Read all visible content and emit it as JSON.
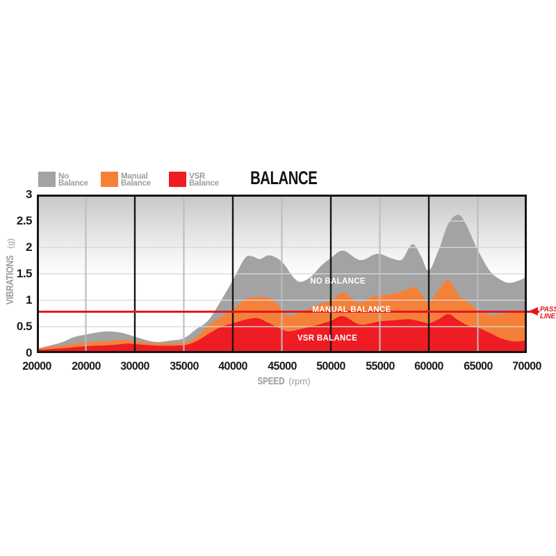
{
  "title": "BALANCE",
  "legend": {
    "items": [
      {
        "line1": "No",
        "line2": "Balance",
        "color": "#a3a3a3"
      },
      {
        "line1": "Manual",
        "line2": "Balance",
        "color": "#f58138"
      },
      {
        "line1": "VSR",
        "line2": "Balance",
        "color": "#ee1c23"
      }
    ]
  },
  "y_axis": {
    "title": "VIBRATIONS",
    "unit": "(g)",
    "tick_labels": [
      "3",
      "2.5",
      "2",
      "1.5",
      "1",
      "0.5",
      "0"
    ],
    "min": 0,
    "max": 3,
    "step": 0.5
  },
  "x_axis": {
    "title": "SPEED",
    "unit": "(rpm)",
    "tick_labels": [
      "20000",
      "20000",
      "30000",
      "35000",
      "40000",
      "45000",
      "50000",
      "55000",
      "60000",
      "65000",
      "70000"
    ]
  },
  "pass_line": {
    "value": 0.78,
    "label_line1": "PASS",
    "label_line2": "LINE",
    "color": "#e4171e"
  },
  "area_labels": {
    "no_balance": "NO BALANCE",
    "manual_balance": "MANUAL BALANCE",
    "vsr_balance": "VSR BALANCE"
  },
  "chart_data": {
    "type": "area",
    "title": "BALANCE",
    "xlabel": "SPEED (rpm)",
    "ylabel": "VIBRATIONS (g)",
    "ylim": [
      0,
      3
    ],
    "grid": true,
    "legend_position": "top-left",
    "x_index_range": [
      0,
      10
    ],
    "x_tick_labels": [
      "20000",
      "20000",
      "30000",
      "35000",
      "40000",
      "45000",
      "50000",
      "55000",
      "60000",
      "65000",
      "70000"
    ],
    "vgrid": {
      "major_ticks": [
        2,
        4,
        6,
        8
      ],
      "minor_ticks": [
        1,
        3,
        5,
        7,
        9
      ]
    },
    "pass_line_value": 0.78,
    "series": [
      {
        "name": "No Balance",
        "color": "#a3a3a3",
        "points": [
          [
            0,
            0.08
          ],
          [
            0.25,
            0.14
          ],
          [
            0.5,
            0.2
          ],
          [
            0.75,
            0.3
          ],
          [
            1,
            0.35
          ],
          [
            1.3,
            0.4
          ],
          [
            1.5,
            0.41
          ],
          [
            1.75,
            0.38
          ],
          [
            2,
            0.31
          ],
          [
            2.3,
            0.23
          ],
          [
            2.5,
            0.21
          ],
          [
            2.75,
            0.24
          ],
          [
            3,
            0.28
          ],
          [
            3.25,
            0.45
          ],
          [
            3.5,
            0.62
          ],
          [
            3.75,
            0.98
          ],
          [
            4,
            1.38
          ],
          [
            4.25,
            1.8
          ],
          [
            4.4,
            1.83
          ],
          [
            4.55,
            1.78
          ],
          [
            4.75,
            1.85
          ],
          [
            5,
            1.73
          ],
          [
            5.25,
            1.42
          ],
          [
            5.4,
            1.35
          ],
          [
            5.6,
            1.45
          ],
          [
            5.8,
            1.65
          ],
          [
            6,
            1.8
          ],
          [
            6.25,
            1.94
          ],
          [
            6.6,
            1.76
          ],
          [
            6.95,
            1.88
          ],
          [
            7.25,
            1.79
          ],
          [
            7.45,
            1.77
          ],
          [
            7.6,
            2.0
          ],
          [
            7.7,
            2.05
          ],
          [
            7.85,
            1.82
          ],
          [
            8,
            1.56
          ],
          [
            8.2,
            1.95
          ],
          [
            8.4,
            2.45
          ],
          [
            8.6,
            2.62
          ],
          [
            8.75,
            2.45
          ],
          [
            9,
            1.95
          ],
          [
            9.25,
            1.55
          ],
          [
            9.5,
            1.37
          ],
          [
            9.65,
            1.33
          ],
          [
            9.8,
            1.36
          ],
          [
            10,
            1.44
          ]
        ]
      },
      {
        "name": "Manual Balance",
        "color": "#f58138",
        "points": [
          [
            0,
            0.09
          ],
          [
            0.5,
            0.14
          ],
          [
            1,
            0.2
          ],
          [
            1.5,
            0.23
          ],
          [
            1.8,
            0.25
          ],
          [
            2,
            0.22
          ],
          [
            2.5,
            0.18
          ],
          [
            3,
            0.2
          ],
          [
            3.25,
            0.3
          ],
          [
            3.5,
            0.52
          ],
          [
            3.75,
            0.68
          ],
          [
            4,
            0.82
          ],
          [
            4.25,
            1.02
          ],
          [
            4.5,
            1.06
          ],
          [
            4.75,
            1.04
          ],
          [
            5,
            0.84
          ],
          [
            5.1,
            0.71
          ],
          [
            5.3,
            0.74
          ],
          [
            5.5,
            0.82
          ],
          [
            5.75,
            0.92
          ],
          [
            6,
            1.0
          ],
          [
            6.25,
            1.15
          ],
          [
            6.45,
            1.02
          ],
          [
            6.6,
            0.95
          ],
          [
            6.85,
            1.07
          ],
          [
            7,
            1.09
          ],
          [
            7.25,
            1.12
          ],
          [
            7.5,
            1.18
          ],
          [
            7.7,
            1.25
          ],
          [
            7.85,
            1.12
          ],
          [
            8,
            0.96
          ],
          [
            8.2,
            1.2
          ],
          [
            8.4,
            1.38
          ],
          [
            8.6,
            1.1
          ],
          [
            8.75,
            1.0
          ],
          [
            9,
            0.82
          ],
          [
            9.25,
            0.72
          ],
          [
            9.5,
            0.74
          ],
          [
            9.75,
            0.81
          ],
          [
            10,
            0.78
          ]
        ]
      },
      {
        "name": "VSR Balance",
        "color": "#ee1c23",
        "points": [
          [
            0,
            0.06
          ],
          [
            0.5,
            0.09
          ],
          [
            1,
            0.13
          ],
          [
            1.5,
            0.15
          ],
          [
            1.85,
            0.18
          ],
          [
            2,
            0.17
          ],
          [
            2.5,
            0.14
          ],
          [
            3,
            0.15
          ],
          [
            3.25,
            0.22
          ],
          [
            3.5,
            0.36
          ],
          [
            3.75,
            0.49
          ],
          [
            4,
            0.56
          ],
          [
            4.25,
            0.63
          ],
          [
            4.5,
            0.66
          ],
          [
            4.75,
            0.56
          ],
          [
            5,
            0.45
          ],
          [
            5.15,
            0.41
          ],
          [
            5.5,
            0.48
          ],
          [
            5.75,
            0.54
          ],
          [
            6,
            0.61
          ],
          [
            6.25,
            0.7
          ],
          [
            6.6,
            0.54
          ],
          [
            7,
            0.6
          ],
          [
            7.3,
            0.62
          ],
          [
            7.6,
            0.64
          ],
          [
            7.9,
            0.58
          ],
          [
            8,
            0.56
          ],
          [
            8.2,
            0.64
          ],
          [
            8.4,
            0.74
          ],
          [
            8.6,
            0.62
          ],
          [
            8.85,
            0.5
          ],
          [
            9,
            0.48
          ],
          [
            9.25,
            0.38
          ],
          [
            9.5,
            0.27
          ],
          [
            9.75,
            0.22
          ],
          [
            10,
            0.24
          ]
        ]
      }
    ]
  }
}
